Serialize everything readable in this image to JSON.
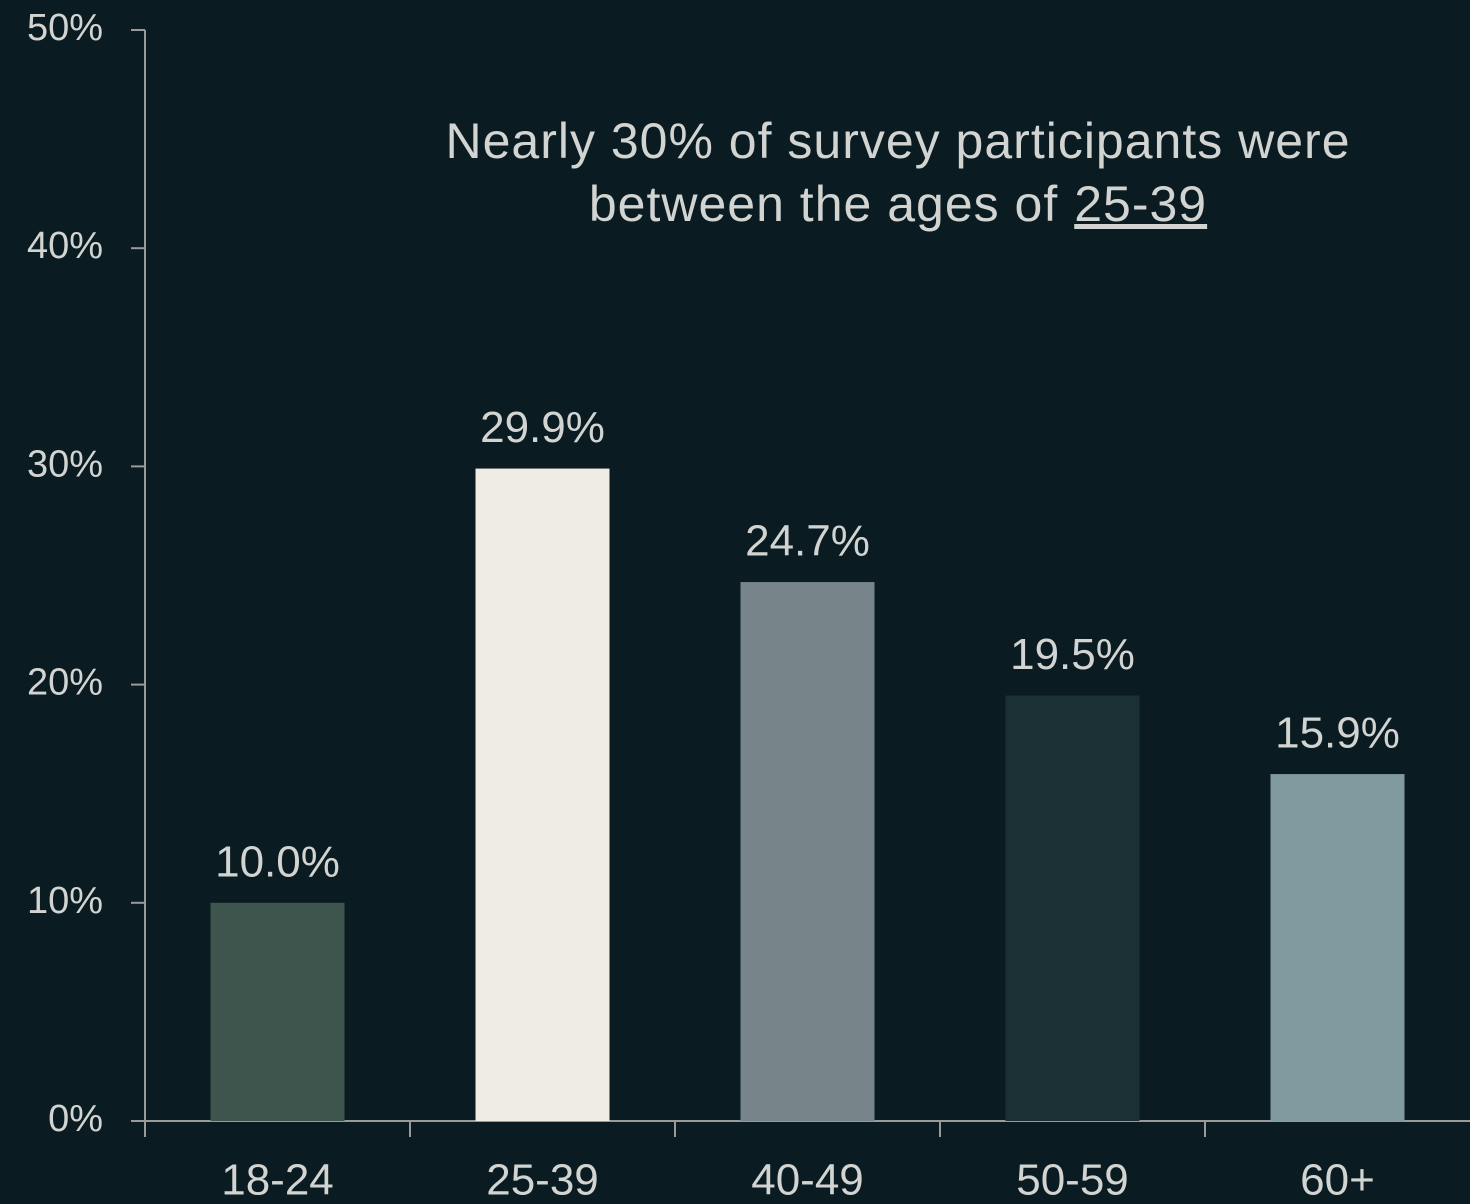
{
  "chart_data": {
    "type": "bar",
    "annotation": [
      "Nearly 30% of survey participants were",
      "between the ages of"
    ],
    "annotation_highlight": "25-39",
    "categories": [
      "18-24",
      "25-39",
      "40-49",
      "50-59",
      "60+"
    ],
    "values": [
      10.0,
      29.9,
      24.7,
      19.5,
      15.9
    ],
    "value_labels": [
      "10.0%",
      "29.9%",
      "24.7%",
      "19.5%",
      "15.9%"
    ],
    "colors": [
      "#3d554d",
      "#efede3",
      "#77858a",
      "#1a3035",
      "#819a9f"
    ],
    "ylim": [
      0,
      50
    ],
    "yticks": [
      {
        "value": 0,
        "label": "0%"
      },
      {
        "value": 10,
        "label": "10%"
      },
      {
        "value": 20,
        "label": "20%"
      },
      {
        "value": 30,
        "label": "30%"
      },
      {
        "value": 40,
        "label": "40%"
      },
      {
        "value": 50,
        "label": "50%"
      }
    ],
    "grid": false
  }
}
